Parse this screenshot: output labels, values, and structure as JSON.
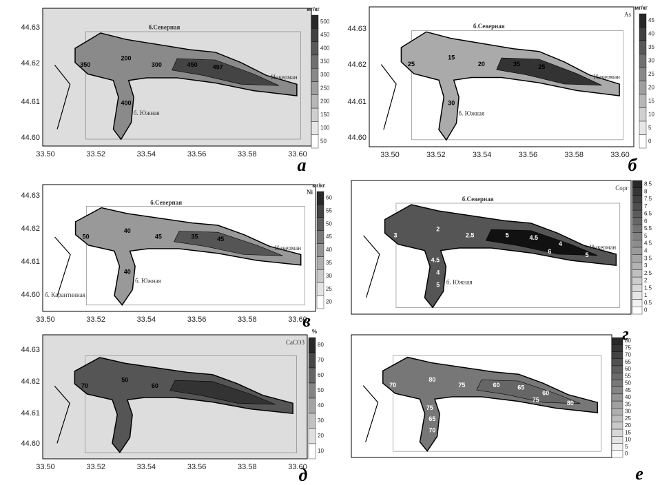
{
  "panels": [
    {
      "letter": "а",
      "unit": "мг/кг",
      "x_ticks": [
        "33.50",
        "33.52",
        "33.54",
        "33.56",
        "33.58",
        "33.60"
      ],
      "y_ticks": [
        "44.63",
        "44.62",
        "44.61",
        "44.60"
      ],
      "colorbar_ticks": [
        "500",
        "450",
        "400",
        "350",
        "300",
        "250",
        "200",
        "150",
        "100",
        "50"
      ],
      "places": [
        "б.Северная",
        "Инкерман",
        "б. Южная"
      ],
      "contour_labels": [
        "200",
        "300",
        "350",
        "400",
        "450",
        "497"
      ]
    },
    {
      "letter": "б",
      "unit": "мг/кг",
      "element": "As",
      "x_ticks": [
        "33.50",
        "33.52",
        "33.54",
        "33.56",
        "33.58",
        "33.60"
      ],
      "y_ticks": [
        "44.63",
        "44.62",
        "44.61",
        "44.60"
      ],
      "colorbar_ticks": [
        "45",
        "40",
        "35",
        "30",
        "25",
        "20",
        "15",
        "10",
        "5",
        "0"
      ],
      "places": [
        "б.Северная",
        "Инкерман",
        "б. Южная"
      ],
      "contour_labels": [
        "15",
        "20",
        "25",
        "30",
        "35",
        "25"
      ]
    },
    {
      "letter": "в",
      "unit": "мг/кг",
      "element": "Ni",
      "x_ticks": [
        "33.50",
        "33.52",
        "33.54",
        "33.56",
        "33.58",
        "33.60"
      ],
      "y_ticks": [
        "44.63",
        "44.62",
        "44.61",
        "44.60"
      ],
      "colorbar_ticks": [
        "60",
        "55",
        "50",
        "45",
        "40",
        "35",
        "30",
        "25",
        "20"
      ],
      "places": [
        "б.Северная",
        "Инкерман",
        "б. Южная",
        "б. Карантинная"
      ],
      "contour_labels": [
        "40",
        "45",
        "50",
        "40",
        "35",
        "45"
      ]
    },
    {
      "letter": "г",
      "element": "Сорг",
      "colorbar_ticks": [
        "8.5",
        "8",
        "7.5",
        "7",
        "6.5",
        "6",
        "5.5",
        "5",
        "4.5",
        "4",
        "3.5",
        "3",
        "2.5",
        "2",
        "1.5",
        "1",
        "0.5",
        "0"
      ],
      "places": [
        "б.Северная",
        "Инкерман",
        "б. Южная"
      ],
      "contour_labels": [
        "2",
        "2.5",
        "3",
        "4",
        "5",
        "4.5",
        "4",
        "6",
        "5",
        "4.5",
        "5"
      ]
    },
    {
      "letter": "д",
      "unit": "%",
      "element": "CaCO3",
      "x_ticks": [
        "33.50",
        "33.52",
        "33.54",
        "33.56",
        "33.58",
        "33.60"
      ],
      "y_ticks": [
        "44.63",
        "44.62",
        "44.61",
        "44.60"
      ],
      "colorbar_ticks": [
        "80",
        "70",
        "60",
        "50",
        "40",
        "30",
        "20",
        "10"
      ],
      "contour_labels": [
        "50",
        "60",
        "70"
      ]
    },
    {
      "letter": "е",
      "colorbar_ticks": [
        "80",
        "75",
        "70",
        "65",
        "60",
        "55",
        "50",
        "45",
        "40",
        "35",
        "30",
        "25",
        "20",
        "15",
        "10",
        "5",
        "0"
      ],
      "contour_labels": [
        "80",
        "75",
        "70",
        "65",
        "60",
        "65",
        "60",
        "75",
        "80",
        "75",
        "70"
      ]
    }
  ]
}
